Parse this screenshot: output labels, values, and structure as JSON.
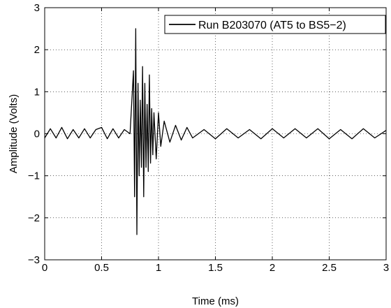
{
  "chart_data": {
    "type": "line",
    "title": "",
    "xlabel": "Time (ms)",
    "ylabel": "Amplitude (Volts)",
    "xlim": [
      0,
      3
    ],
    "ylim": [
      -3,
      3
    ],
    "grid": true,
    "legend_placement": "top-right",
    "x_tick_values": [
      0,
      0.5,
      1,
      1.5,
      2,
      2.5,
      3
    ],
    "x_tick_labels": [
      "0",
      "0.5",
      "1",
      "1.5",
      "2",
      "2.5",
      "3"
    ],
    "y_tick_values": [
      -3,
      -2,
      -1,
      0,
      1,
      2,
      3
    ],
    "y_tick_labels": [
      "−3",
      "−2",
      "−1",
      "0",
      "1",
      "2",
      "3"
    ],
    "line_color": "#000000",
    "series": [
      {
        "name": "Run B203070 (AT5 to BS5−2)",
        "x": [
          0,
          0.05,
          0.1,
          0.15,
          0.2,
          0.25,
          0.3,
          0.35,
          0.4,
          0.45,
          0.5,
          0.55,
          0.6,
          0.65,
          0.7,
          0.75,
          0.78,
          0.79,
          0.8,
          0.81,
          0.82,
          0.83,
          0.84,
          0.85,
          0.86,
          0.87,
          0.88,
          0.89,
          0.9,
          0.91,
          0.92,
          0.93,
          0.94,
          0.95,
          0.96,
          0.98,
          1.0,
          1.02,
          1.05,
          1.1,
          1.15,
          1.2,
          1.25,
          1.3,
          1.4,
          1.5,
          1.6,
          1.7,
          1.8,
          1.9,
          2.0,
          2.1,
          2.2,
          2.3,
          2.4,
          2.5,
          2.6,
          2.7,
          2.8,
          2.9,
          3.0
        ],
        "y": [
          -0.1,
          0.12,
          -0.1,
          0.15,
          -0.12,
          0.1,
          -0.1,
          0.12,
          -0.1,
          0.1,
          0.15,
          -0.12,
          0.12,
          -0.1,
          0.1,
          0.0,
          1.5,
          -1.5,
          2.5,
          -2.4,
          1.2,
          -1.0,
          0.8,
          -0.8,
          1.6,
          -1.5,
          1.2,
          -0.8,
          0.7,
          -0.9,
          1.4,
          -0.7,
          0.6,
          -0.5,
          0.5,
          -0.6,
          0.5,
          -0.3,
          0.3,
          -0.2,
          0.2,
          -0.15,
          0.15,
          -0.1,
          0.1,
          -0.12,
          0.12,
          -0.1,
          0.1,
          -0.12,
          0.12,
          -0.1,
          0.12,
          -0.1,
          0.12,
          -0.12,
          0.1,
          -0.12,
          0.12,
          -0.1,
          0.08
        ]
      }
    ]
  }
}
